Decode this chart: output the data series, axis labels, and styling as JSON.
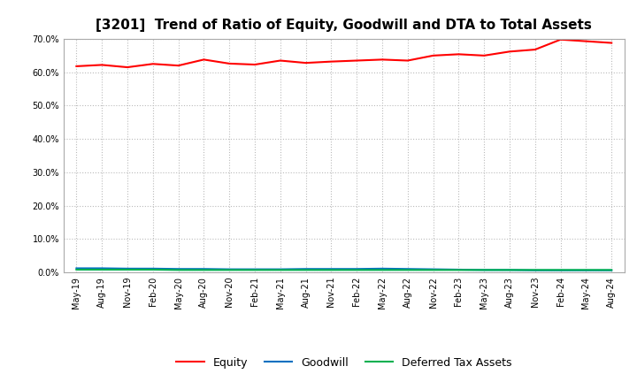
{
  "title": "[3201]  Trend of Ratio of Equity, Goodwill and DTA to Total Assets",
  "x_labels": [
    "May-19",
    "Aug-19",
    "Nov-19",
    "Feb-20",
    "May-20",
    "Aug-20",
    "Nov-20",
    "Feb-21",
    "May-21",
    "Aug-21",
    "Nov-21",
    "Feb-22",
    "May-22",
    "Aug-22",
    "Nov-22",
    "Feb-23",
    "May-23",
    "Aug-23",
    "Nov-23",
    "Feb-24",
    "May-24",
    "Aug-24"
  ],
  "equity": [
    0.618,
    0.622,
    0.615,
    0.625,
    0.62,
    0.638,
    0.626,
    0.623,
    0.635,
    0.628,
    0.632,
    0.635,
    0.638,
    0.635,
    0.65,
    0.654,
    0.65,
    0.662,
    0.668,
    0.698,
    0.693,
    0.688
  ],
  "goodwill": [
    0.012,
    0.012,
    0.011,
    0.011,
    0.01,
    0.01,
    0.009,
    0.009,
    0.009,
    0.01,
    0.01,
    0.01,
    0.011,
    0.01,
    0.009,
    0.008,
    0.007,
    0.007,
    0.006,
    0.006,
    0.006,
    0.006
  ],
  "dta": [
    0.008,
    0.008,
    0.008,
    0.008,
    0.007,
    0.007,
    0.007,
    0.007,
    0.007,
    0.007,
    0.007,
    0.007,
    0.007,
    0.007,
    0.007,
    0.007,
    0.007,
    0.007,
    0.007,
    0.007,
    0.007,
    0.007
  ],
  "equity_color": "#FF0000",
  "goodwill_color": "#0070C0",
  "dta_color": "#00B050",
  "ylim": [
    0.0,
    0.7
  ],
  "yticks": [
    0.0,
    0.1,
    0.2,
    0.3,
    0.4,
    0.5,
    0.6,
    0.7
  ],
  "background_color": "#FFFFFF",
  "plot_bg_color": "#FFFFFF",
  "grid_color": "#BBBBBB",
  "title_fontsize": 11,
  "tick_fontsize": 7,
  "legend_labels": [
    "Equity",
    "Goodwill",
    "Deferred Tax Assets"
  ]
}
